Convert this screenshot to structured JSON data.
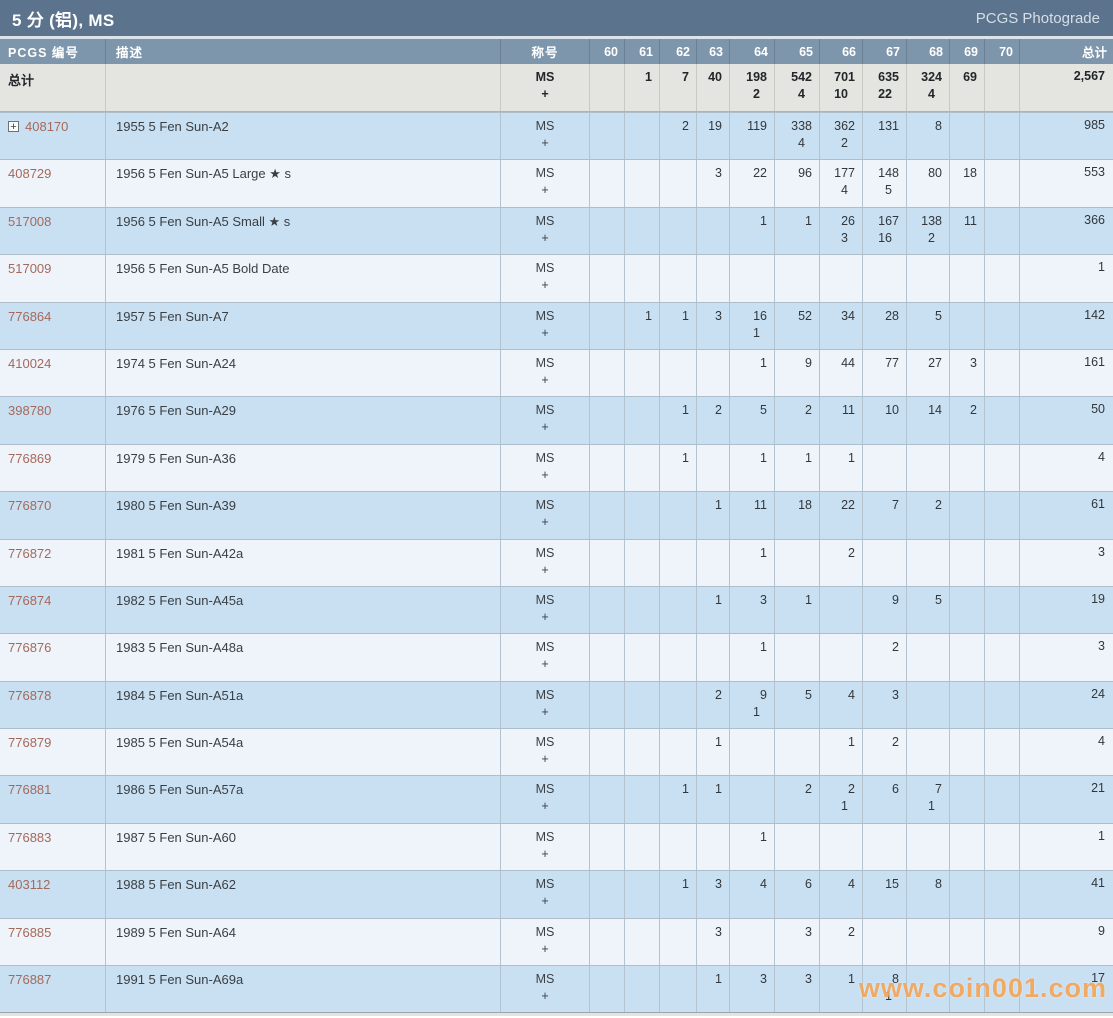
{
  "header": {
    "title": "5 分 (铝), MS",
    "photograde_link": "PCGS Photograde"
  },
  "icons": {
    "expand": "+"
  },
  "watermark": "www.coin001.com",
  "colors": {
    "title_bar": "#5b738c",
    "header_row": "#7e96ac",
    "row_blue": "#c9e0f2",
    "row_light": "#eef4fa",
    "totals_bg": "#e4e4e1",
    "pcgs_number": "#a5695b",
    "watermark_orange": "#f29e4a"
  },
  "table": {
    "col_pcgs": "PCGS 编号",
    "col_desc": "描述",
    "col_designation": "称号",
    "grade_cols": [
      "60",
      "61",
      "62",
      "63",
      "64",
      "65",
      "66",
      "67",
      "68",
      "69",
      "70"
    ],
    "col_total": "总计",
    "designation_line1": "MS",
    "designation_line2": "+",
    "totals": {
      "label": "总计",
      "values": [
        [
          "",
          ""
        ],
        [
          "1",
          ""
        ],
        [
          "7",
          ""
        ],
        [
          "40",
          ""
        ],
        [
          "198",
          "2"
        ],
        [
          "542",
          "4"
        ],
        [
          "701",
          "10"
        ],
        [
          "635",
          "22"
        ],
        [
          "324",
          "4"
        ],
        [
          "69",
          ""
        ],
        [
          "",
          ""
        ]
      ],
      "total": "2,567"
    },
    "rows": [
      {
        "pcgs": "408170",
        "expand": true,
        "desc": "1955 5 Fen Sun-A2",
        "values": [
          [
            "",
            ""
          ],
          [
            "",
            ""
          ],
          [
            "2",
            ""
          ],
          [
            "19",
            ""
          ],
          [
            "119",
            ""
          ],
          [
            "338",
            "4"
          ],
          [
            "362",
            "2"
          ],
          [
            "131",
            ""
          ],
          [
            "8",
            ""
          ],
          [
            "",
            ""
          ],
          [
            "",
            ""
          ]
        ],
        "total": "985"
      },
      {
        "pcgs": "408729",
        "expand": false,
        "desc": "1956 5 Fen Sun-A5 Large ★ s",
        "values": [
          [
            "",
            ""
          ],
          [
            "",
            ""
          ],
          [
            "",
            ""
          ],
          [
            "3",
            ""
          ],
          [
            "22",
            ""
          ],
          [
            "96",
            ""
          ],
          [
            "177",
            "4"
          ],
          [
            "148",
            "5"
          ],
          [
            "80",
            ""
          ],
          [
            "18",
            ""
          ],
          [
            "",
            ""
          ]
        ],
        "total": "553"
      },
      {
        "pcgs": "517008",
        "expand": false,
        "desc": "1956 5 Fen Sun-A5 Small ★ s",
        "values": [
          [
            "",
            ""
          ],
          [
            "",
            ""
          ],
          [
            "",
            ""
          ],
          [
            "",
            ""
          ],
          [
            "1",
            ""
          ],
          [
            "1",
            ""
          ],
          [
            "26",
            "3"
          ],
          [
            "167",
            "16"
          ],
          [
            "138",
            "2"
          ],
          [
            "11",
            ""
          ],
          [
            "",
            ""
          ]
        ],
        "total": "366"
      },
      {
        "pcgs": "517009",
        "expand": false,
        "desc": "1956 5 Fen Sun-A5 Bold Date",
        "values": [
          [
            "",
            ""
          ],
          [
            "",
            ""
          ],
          [
            "",
            ""
          ],
          [
            "",
            ""
          ],
          [
            "",
            ""
          ],
          [
            "",
            ""
          ],
          [
            "",
            ""
          ],
          [
            "",
            ""
          ],
          [
            "",
            ""
          ],
          [
            "",
            ""
          ],
          [
            "",
            ""
          ]
        ],
        "total": "1"
      },
      {
        "pcgs": "776864",
        "expand": false,
        "desc": "1957 5 Fen Sun-A7",
        "values": [
          [
            "",
            ""
          ],
          [
            "1",
            ""
          ],
          [
            "1",
            ""
          ],
          [
            "3",
            ""
          ],
          [
            "16",
            "1"
          ],
          [
            "52",
            ""
          ],
          [
            "34",
            ""
          ],
          [
            "28",
            ""
          ],
          [
            "5",
            ""
          ],
          [
            "",
            ""
          ],
          [
            "",
            ""
          ]
        ],
        "total": "142"
      },
      {
        "pcgs": "410024",
        "expand": false,
        "desc": "1974 5 Fen Sun-A24",
        "values": [
          [
            "",
            ""
          ],
          [
            "",
            ""
          ],
          [
            "",
            ""
          ],
          [
            "",
            ""
          ],
          [
            "1",
            ""
          ],
          [
            "9",
            ""
          ],
          [
            "44",
            ""
          ],
          [
            "77",
            ""
          ],
          [
            "27",
            ""
          ],
          [
            "3",
            ""
          ],
          [
            "",
            ""
          ]
        ],
        "total": "161"
      },
      {
        "pcgs": "398780",
        "expand": false,
        "desc": "1976 5 Fen Sun-A29",
        "values": [
          [
            "",
            ""
          ],
          [
            "",
            ""
          ],
          [
            "1",
            ""
          ],
          [
            "2",
            ""
          ],
          [
            "5",
            ""
          ],
          [
            "2",
            ""
          ],
          [
            "11",
            ""
          ],
          [
            "10",
            ""
          ],
          [
            "14",
            ""
          ],
          [
            "2",
            ""
          ],
          [
            "",
            ""
          ]
        ],
        "total": "50"
      },
      {
        "pcgs": "776869",
        "expand": false,
        "desc": "1979 5 Fen Sun-A36",
        "values": [
          [
            "",
            ""
          ],
          [
            "",
            ""
          ],
          [
            "1",
            ""
          ],
          [
            "",
            ""
          ],
          [
            "1",
            ""
          ],
          [
            "1",
            ""
          ],
          [
            "1",
            ""
          ],
          [
            "",
            ""
          ],
          [
            "",
            ""
          ],
          [
            "",
            ""
          ],
          [
            "",
            ""
          ]
        ],
        "total": "4"
      },
      {
        "pcgs": "776870",
        "expand": false,
        "desc": "1980 5 Fen Sun-A39",
        "values": [
          [
            "",
            ""
          ],
          [
            "",
            ""
          ],
          [
            "",
            ""
          ],
          [
            "1",
            ""
          ],
          [
            "11",
            ""
          ],
          [
            "18",
            ""
          ],
          [
            "22",
            ""
          ],
          [
            "7",
            ""
          ],
          [
            "2",
            ""
          ],
          [
            "",
            ""
          ],
          [
            "",
            ""
          ]
        ],
        "total": "61"
      },
      {
        "pcgs": "776872",
        "expand": false,
        "desc": "1981 5 Fen Sun-A42a",
        "values": [
          [
            "",
            ""
          ],
          [
            "",
            ""
          ],
          [
            "",
            ""
          ],
          [
            "",
            ""
          ],
          [
            "1",
            ""
          ],
          [
            "",
            ""
          ],
          [
            "2",
            ""
          ],
          [
            "",
            ""
          ],
          [
            "",
            ""
          ],
          [
            "",
            ""
          ],
          [
            "",
            ""
          ]
        ],
        "total": "3"
      },
      {
        "pcgs": "776874",
        "expand": false,
        "desc": "1982 5 Fen Sun-A45a",
        "values": [
          [
            "",
            ""
          ],
          [
            "",
            ""
          ],
          [
            "",
            ""
          ],
          [
            "1",
            ""
          ],
          [
            "3",
            ""
          ],
          [
            "1",
            ""
          ],
          [
            "",
            ""
          ],
          [
            "9",
            ""
          ],
          [
            "5",
            ""
          ],
          [
            "",
            ""
          ],
          [
            "",
            ""
          ]
        ],
        "total": "19"
      },
      {
        "pcgs": "776876",
        "expand": false,
        "desc": "1983 5 Fen Sun-A48a",
        "values": [
          [
            "",
            ""
          ],
          [
            "",
            ""
          ],
          [
            "",
            ""
          ],
          [
            "",
            ""
          ],
          [
            "1",
            ""
          ],
          [
            "",
            ""
          ],
          [
            "",
            ""
          ],
          [
            "2",
            ""
          ],
          [
            "",
            ""
          ],
          [
            "",
            ""
          ],
          [
            "",
            ""
          ]
        ],
        "total": "3"
      },
      {
        "pcgs": "776878",
        "expand": false,
        "desc": "1984 5 Fen Sun-A51a",
        "values": [
          [
            "",
            ""
          ],
          [
            "",
            ""
          ],
          [
            "",
            ""
          ],
          [
            "2",
            ""
          ],
          [
            "9",
            "1"
          ],
          [
            "5",
            ""
          ],
          [
            "4",
            ""
          ],
          [
            "3",
            ""
          ],
          [
            "",
            ""
          ],
          [
            "",
            ""
          ],
          [
            "",
            ""
          ]
        ],
        "total": "24"
      },
      {
        "pcgs": "776879",
        "expand": false,
        "desc": "1985 5 Fen Sun-A54a",
        "values": [
          [
            "",
            ""
          ],
          [
            "",
            ""
          ],
          [
            "",
            ""
          ],
          [
            "1",
            ""
          ],
          [
            "",
            ""
          ],
          [
            "",
            ""
          ],
          [
            "1",
            ""
          ],
          [
            "2",
            ""
          ],
          [
            "",
            ""
          ],
          [
            "",
            ""
          ],
          [
            "",
            ""
          ]
        ],
        "total": "4"
      },
      {
        "pcgs": "776881",
        "expand": false,
        "desc": "1986 5 Fen Sun-A57a",
        "values": [
          [
            "",
            ""
          ],
          [
            "",
            ""
          ],
          [
            "1",
            ""
          ],
          [
            "1",
            ""
          ],
          [
            "",
            ""
          ],
          [
            "2",
            ""
          ],
          [
            "2",
            "1"
          ],
          [
            "6",
            ""
          ],
          [
            "7",
            "1"
          ],
          [
            "",
            ""
          ],
          [
            "",
            ""
          ]
        ],
        "total": "21"
      },
      {
        "pcgs": "776883",
        "expand": false,
        "desc": "1987 5 Fen Sun-A60",
        "values": [
          [
            "",
            ""
          ],
          [
            "",
            ""
          ],
          [
            "",
            ""
          ],
          [
            "",
            ""
          ],
          [
            "1",
            ""
          ],
          [
            "",
            ""
          ],
          [
            "",
            ""
          ],
          [
            "",
            ""
          ],
          [
            "",
            ""
          ],
          [
            "",
            ""
          ],
          [
            "",
            ""
          ]
        ],
        "total": "1"
      },
      {
        "pcgs": "403112",
        "expand": false,
        "desc": "1988 5 Fen Sun-A62",
        "values": [
          [
            "",
            ""
          ],
          [
            "",
            ""
          ],
          [
            "1",
            ""
          ],
          [
            "3",
            ""
          ],
          [
            "4",
            ""
          ],
          [
            "6",
            ""
          ],
          [
            "4",
            ""
          ],
          [
            "15",
            ""
          ],
          [
            "8",
            ""
          ],
          [
            "",
            ""
          ],
          [
            "",
            ""
          ]
        ],
        "total": "41"
      },
      {
        "pcgs": "776885",
        "expand": false,
        "desc": "1989 5 Fen Sun-A64",
        "values": [
          [
            "",
            ""
          ],
          [
            "",
            ""
          ],
          [
            "",
            ""
          ],
          [
            "3",
            ""
          ],
          [
            "",
            ""
          ],
          [
            "3",
            ""
          ],
          [
            "2",
            ""
          ],
          [
            "",
            ""
          ],
          [
            "",
            ""
          ],
          [
            "",
            ""
          ],
          [
            "",
            ""
          ]
        ],
        "total": "9"
      },
      {
        "pcgs": "776887",
        "expand": false,
        "desc": "1991 5 Fen Sun-A69a",
        "values": [
          [
            "",
            ""
          ],
          [
            "",
            ""
          ],
          [
            "",
            ""
          ],
          [
            "1",
            ""
          ],
          [
            "3",
            ""
          ],
          [
            "3",
            ""
          ],
          [
            "1",
            ""
          ],
          [
            "8",
            "1"
          ],
          [
            "",
            ""
          ],
          [
            "",
            ""
          ],
          [
            "",
            ""
          ]
        ],
        "total": "17"
      }
    ]
  }
}
